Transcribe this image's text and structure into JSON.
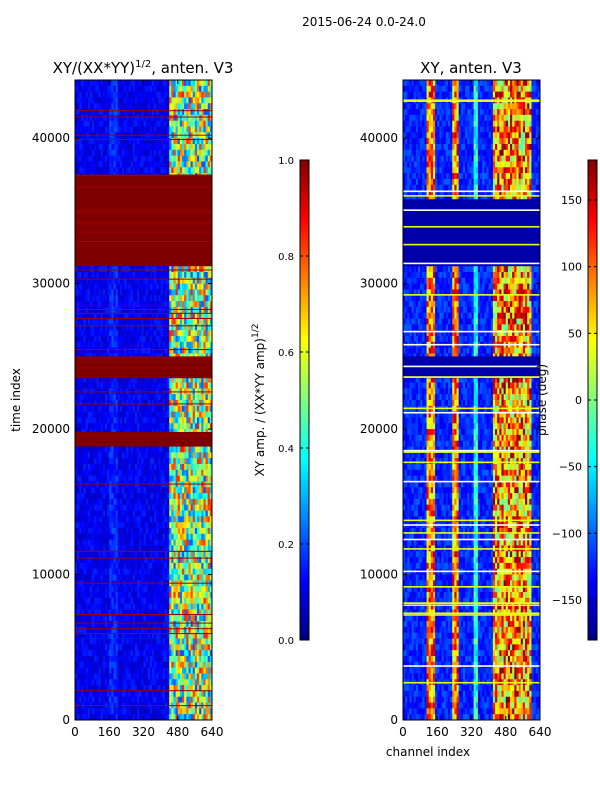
{
  "figure": {
    "suptitle": "2015-06-24 0.0-24.0"
  },
  "colormap": [
    "#00007f",
    "#0000ff",
    "#0080ff",
    "#00ffff",
    "#7fff7f",
    "#ffff00",
    "#ff8000",
    "#ff0000",
    "#7f0000"
  ],
  "chart_data": [
    {
      "type": "heatmap",
      "title_main": "XY/(XX*YY)",
      "title_exp": "1/2",
      "title_rest": ", anten. V3",
      "xlabel": "",
      "ylabel": "time index",
      "xlim": [
        0,
        640
      ],
      "ylim": [
        0,
        44000
      ],
      "xticks": [
        0,
        160,
        320,
        480,
        640
      ],
      "yticks": [
        0,
        10000,
        20000,
        30000,
        40000
      ],
      "colorbar": {
        "label_main": "XY amp. / (XX*YY amp)",
        "label_exp": "1/2",
        "range": [
          0.0,
          1.0
        ],
        "ticks": [
          0.0,
          0.2,
          0.4,
          0.6,
          0.8,
          1.0
        ],
        "tick_labels": [
          "0.0",
          "0.2",
          "0.4",
          "0.6",
          "0.8",
          "1.0"
        ]
      },
      "saturated_bands": [
        [
          18800,
          19800
        ],
        [
          23500,
          25000
        ],
        [
          31200,
          37500
        ]
      ]
    },
    {
      "type": "heatmap",
      "title_main": "XY, anten. V3",
      "xlabel": "channel index",
      "ylabel": "",
      "xlim": [
        0,
        640
      ],
      "ylim": [
        0,
        44000
      ],
      "xticks": [
        0,
        160,
        320,
        480,
        640
      ],
      "yticks": [
        0,
        10000,
        20000,
        30000,
        40000
      ],
      "colorbar": {
        "label_main": "phase (deg)",
        "range": [
          -180,
          180
        ],
        "ticks": [
          -150,
          -100,
          -50,
          0,
          50,
          100,
          150
        ],
        "tick_labels": [
          "−150",
          "−100",
          "−50",
          "0",
          "50",
          "100",
          "150"
        ]
      },
      "low_bands": [
        [
          23500,
          25000
        ],
        [
          31200,
          35800
        ]
      ]
    }
  ]
}
